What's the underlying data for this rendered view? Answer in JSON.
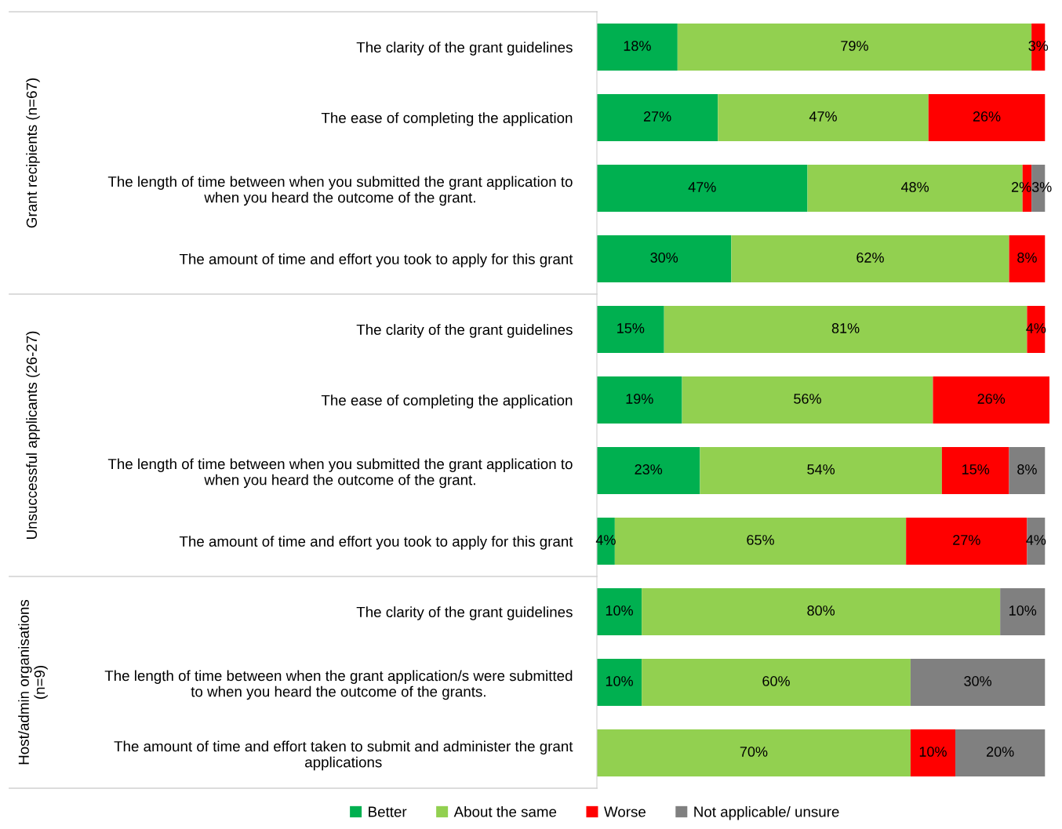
{
  "chart_data": {
    "type": "bar",
    "orientation": "horizontal",
    "stacked": true,
    "categories": [
      "The clarity of the grant guidelines",
      "The ease of completing the application",
      "The length of time between when you submitted the grant application to\nwhen you heard the outcome of the grant.",
      "The amount of time and effort you took to apply for this grant",
      "The clarity of the grant guidelines",
      "The ease of completing the application",
      "The length of time between when you submitted the grant application to\nwhen you heard the outcome of the grant.",
      "The amount of time and effort you took to apply for this grant",
      "The clarity of the grant guidelines",
      "The length of time between when the grant application/s were submitted\nto when you heard the outcome of the grants.",
      "The amount of time and effort taken to submit and administer the grant\napplications"
    ],
    "series": [
      {
        "name": "Better",
        "color": "#00b050",
        "values": [
          18,
          27,
          47,
          30,
          15,
          19,
          23,
          4,
          10,
          10,
          null
        ],
        "value_labels": [
          "18%",
          "27%",
          "47%",
          "30%",
          "15%",
          "19%",
          "23%",
          "4%",
          "10%",
          "10%",
          null
        ]
      },
      {
        "name": "About the same",
        "color": "#92d050",
        "values": [
          79,
          47,
          48,
          62,
          81,
          56,
          54,
          65,
          80,
          60,
          70
        ],
        "value_labels": [
          "79%",
          "47%",
          "48%",
          "62%",
          "81%",
          "56%",
          "54%",
          "65%",
          "80%",
          "60%",
          "70%"
        ]
      },
      {
        "name": "Worse",
        "color": "#ff0000",
        "values": [
          3,
          26,
          2,
          8,
          4,
          26,
          15,
          27,
          null,
          null,
          10
        ],
        "value_labels": [
          "3%",
          "26%",
          "2%",
          "8%",
          "4%",
          "26%",
          "15%",
          "27%",
          null,
          null,
          "10%"
        ]
      },
      {
        "name": "Not applicable/ unsure",
        "color": "#808080",
        "values": [
          null,
          null,
          3,
          null,
          null,
          null,
          8,
          4,
          10,
          30,
          20
        ],
        "value_labels": [
          null,
          null,
          "3%",
          null,
          null,
          null,
          "8%",
          "4%",
          "10%",
          "30%",
          "20%"
        ]
      }
    ],
    "xlim": [
      0,
      101
    ],
    "tick_labels": "y",
    "grid": false,
    "legend": "bottom",
    "annotations": [
      "Grant recipients (n=67)",
      "Unsuccessful applicants (26-27)",
      "Host/admin organisations\n(n=9)"
    ]
  }
}
